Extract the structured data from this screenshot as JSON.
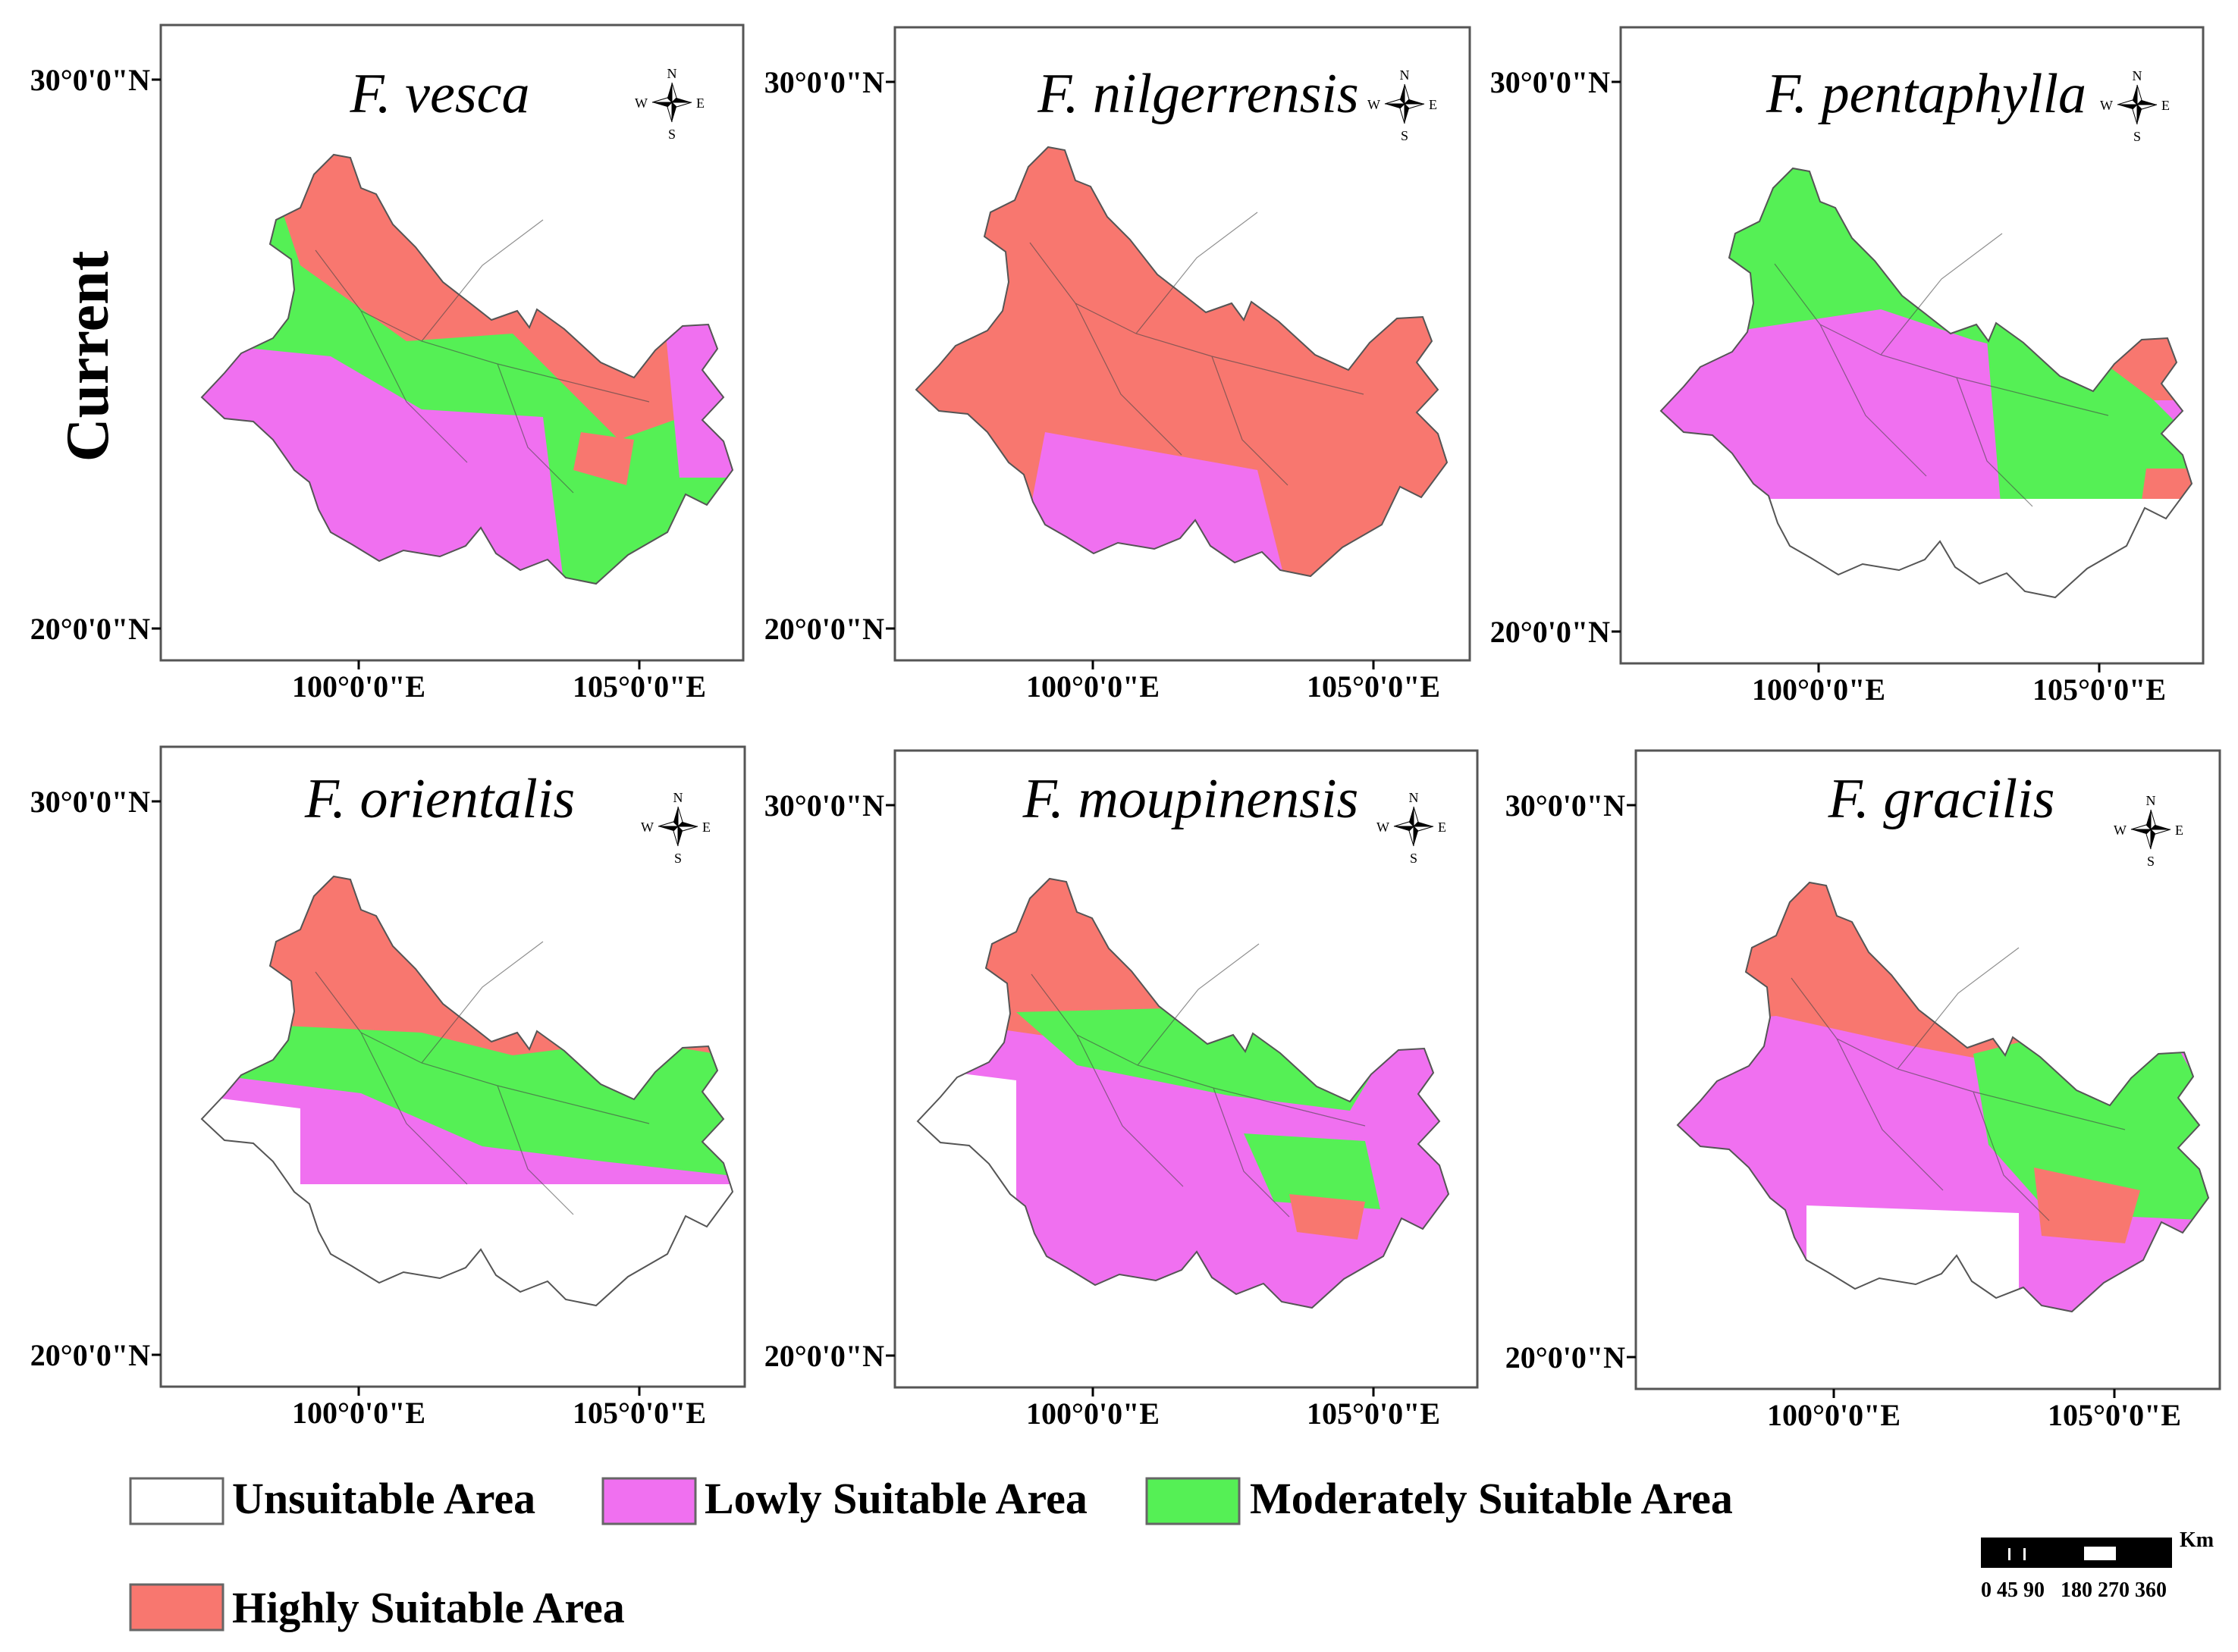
{
  "row_label": "Current",
  "axis_labels": {
    "lat_top": "30°0'0\"N",
    "lat_bottom": "20°0'0\"N",
    "lon_left": "100°0'0\"E",
    "lon_right": "105°0'0\"E"
  },
  "compass": {
    "n": "N",
    "s": "S",
    "e": "E",
    "w": "W",
    "icon": "north-arrow-compass"
  },
  "categories": [
    {
      "key": "unsuitable",
      "label": "Unsuitable Area",
      "color": "#ffffff"
    },
    {
      "key": "low",
      "label": "Lowly Suitable Area",
      "color": "#f070f0"
    },
    {
      "key": "moderate",
      "label": "Moderately Suitable Area",
      "color": "#55f055"
    },
    {
      "key": "high",
      "label": "Highly Suitable Area",
      "color": "#f8776f"
    }
  ],
  "panels": [
    {
      "species": "F. vesca"
    },
    {
      "species": "F. nilgerrensis"
    },
    {
      "species": "F. pentaphylla"
    },
    {
      "species": "F. orientalis"
    },
    {
      "species": "F. moupinensis"
    },
    {
      "species": "F. gracilis"
    }
  ],
  "scale_bar": {
    "unit": "Km",
    "ticks": "0 45 90   180 270 360"
  }
}
